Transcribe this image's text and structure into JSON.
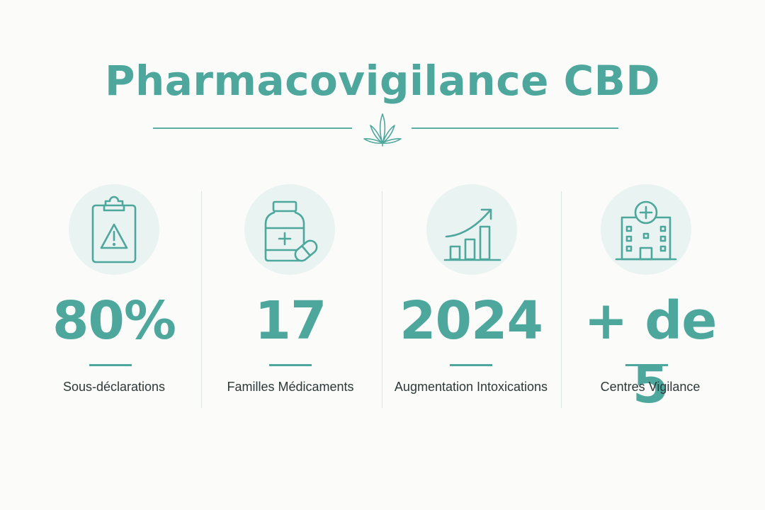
{
  "title": "Pharmacovigilance CBD",
  "colors": {
    "accent": "#4ea79d",
    "icon_bg": "#e9f3f1",
    "text": "#2d3838",
    "background": "#fbfbfa"
  },
  "divider_icon": "cannabis-leaf-icon",
  "stats": [
    {
      "icon": "clipboard-warning-icon",
      "value": "80%",
      "label": "Sous-déclarations"
    },
    {
      "icon": "medication-bottle-pill-icon",
      "value": "17",
      "label": "Familles Médicaments"
    },
    {
      "icon": "growth-chart-icon",
      "value": "2024",
      "label": "Augmentation Intoxications"
    },
    {
      "icon": "hospital-icon",
      "value": "+ de 5",
      "label": "Centres Vigilance"
    }
  ]
}
